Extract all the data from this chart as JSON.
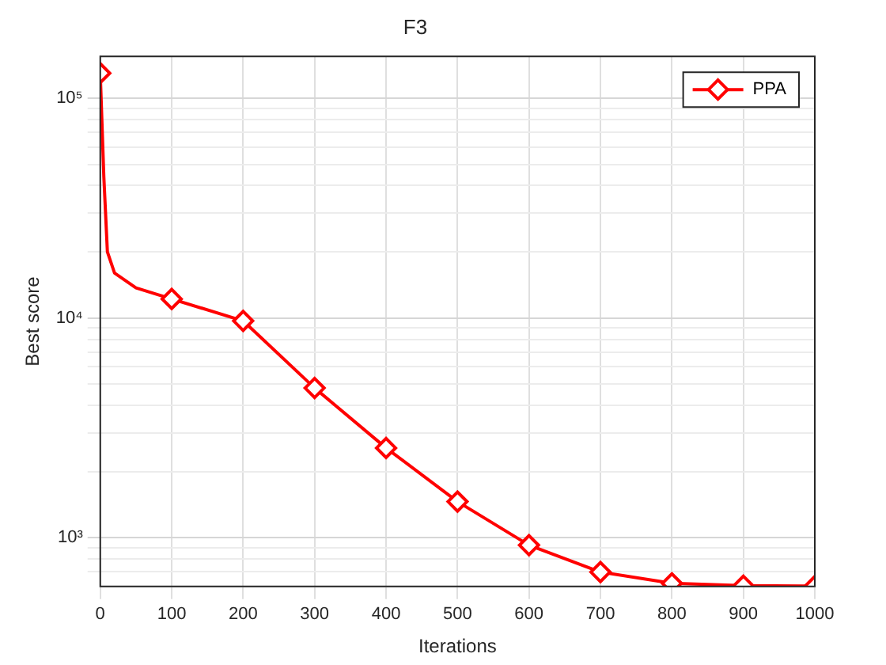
{
  "chart_data": {
    "type": "line",
    "title": "F3",
    "xlabel": "Iterations",
    "ylabel": "Best score",
    "log": "y",
    "grid": true,
    "legend": "top right",
    "marker": "diamond",
    "line_style": "solid",
    "xlim": [
      0,
      1000
    ],
    "xticks": [
      0,
      100,
      200,
      300,
      400,
      500,
      600,
      700,
      800,
      900,
      1000
    ],
    "ylim": [
      600,
      155000
    ],
    "yticks": [
      {
        "value": 700,
        "label": null
      },
      {
        "value": 800,
        "label": null
      },
      {
        "value": 900,
        "label": null
      },
      {
        "value": 1000,
        "label": "10³"
      },
      {
        "value": 2000,
        "label": null
      },
      {
        "value": 3000,
        "label": null
      },
      {
        "value": 4000,
        "label": null
      },
      {
        "value": 5000,
        "label": null
      },
      {
        "value": 6000,
        "label": null
      },
      {
        "value": 7000,
        "label": null
      },
      {
        "value": 8000,
        "label": null
      },
      {
        "value": 9000,
        "label": null
      },
      {
        "value": 10000,
        "label": "10⁴"
      },
      {
        "value": 20000,
        "label": null
      },
      {
        "value": 30000,
        "label": null
      },
      {
        "value": 40000,
        "label": null
      },
      {
        "value": 50000,
        "label": null
      },
      {
        "value": 60000,
        "label": null
      },
      {
        "value": 70000,
        "label": null
      },
      {
        "value": 80000,
        "label": null
      },
      {
        "value": 90000,
        "label": null
      },
      {
        "value": 100000,
        "label": "10⁵"
      }
    ],
    "x": [
      0,
      5,
      10,
      20,
      50,
      100,
      200,
      300,
      400,
      500,
      600,
      700,
      800,
      900,
      1000
    ],
    "series": [
      {
        "name": "PPA",
        "color": "#ff0000",
        "values": [
          130000,
          44000,
          20000,
          16000,
          13700,
          12200,
          9700,
          4800,
          2560,
          1460,
          925,
          698,
          620,
          605,
          603
        ]
      }
    ]
  }
}
